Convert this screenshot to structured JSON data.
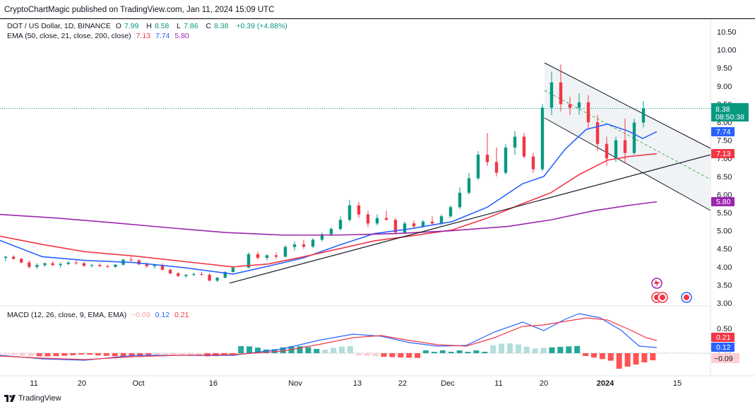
{
  "header": {
    "published": "CryptoChartMagic published on TradingView.com, Jan 11, 2024 15:09 UTC"
  },
  "legend": {
    "symbol": "DOT / US Dollar, 1D, BINANCE",
    "o_label": "O",
    "o": "7.99",
    "h_label": "H",
    "h": "8.58",
    "l_label": "L",
    "l": "7.86",
    "c_label": "C",
    "c": "8.38",
    "change": "+0.39 (+4.88%)",
    "ema_label": "EMA (50, close, 21, close, 200, close)",
    "ema50": "7.13",
    "ema21": "7.74",
    "ema200": "5.80"
  },
  "macd_legend": {
    "label": "MACD (12, 26, close, 9, EMA, EMA)",
    "hist": "−0.09",
    "macd": "0.12",
    "signal": "0.21"
  },
  "price_axis": [
    "10.50",
    "10.00",
    "9.50",
    "9.00",
    "8.50",
    "8.00",
    "7.50",
    "7.00",
    "6.50",
    "6.00",
    "5.50",
    "5.00",
    "4.50",
    "4.00",
    "3.50",
    "3.00"
  ],
  "macd_axis": [
    "0.50",
    "0.00"
  ],
  "badges": {
    "last_price": "8.38",
    "countdown": "08:50:38",
    "ema21": "7.74",
    "ema50": "7.13",
    "ema200": "5.80",
    "macd_signal": "0.21",
    "macd_line": "0.12",
    "macd_hist": "−0.09"
  },
  "x_axis": [
    "11",
    "20",
    "Oct",
    "16",
    "Nov",
    "13",
    "22",
    "Dec",
    "11",
    "20",
    "2024",
    "15"
  ],
  "footer": {
    "brand": "TradingView"
  },
  "colors": {
    "up": "#089981",
    "down": "#f23645",
    "ema21": "#2962ff",
    "ema50": "#f23645",
    "ema200": "#9c27b0",
    "channel_fill": "#f0f3f6"
  },
  "chart_data": {
    "type": "candlestick",
    "ylim": [
      3.0,
      10.5
    ],
    "candles_approx": [
      [
        4.25,
        4.3,
        4.15,
        4.28
      ],
      [
        4.28,
        4.32,
        4.2,
        4.22
      ],
      [
        4.22,
        4.25,
        4.1,
        4.12
      ],
      [
        4.12,
        4.18,
        3.95,
        4.0
      ],
      [
        4.0,
        4.1,
        3.95,
        4.05
      ],
      [
        4.05,
        4.12,
        4.0,
        4.1
      ],
      [
        4.1,
        4.15,
        4.02,
        4.05
      ],
      [
        4.05,
        4.12,
        3.98,
        4.08
      ],
      [
        4.08,
        4.15,
        4.05,
        4.12
      ],
      [
        4.12,
        4.18,
        4.06,
        4.1
      ],
      [
        4.1,
        4.14,
        4.0,
        4.03
      ],
      [
        4.03,
        4.08,
        3.98,
        4.05
      ],
      [
        4.05,
        4.1,
        4.0,
        4.02
      ],
      [
        4.02,
        4.06,
        3.97,
        4.0
      ],
      [
        4.0,
        4.08,
        3.98,
        4.06
      ],
      [
        4.06,
        4.22,
        4.04,
        4.2
      ],
      [
        4.2,
        4.28,
        4.15,
        4.18
      ],
      [
        4.18,
        4.22,
        4.05,
        4.07
      ],
      [
        4.07,
        4.12,
        3.98,
        4.02
      ],
      [
        4.02,
        4.08,
        3.95,
        4.05
      ],
      [
        4.05,
        4.1,
        3.9,
        3.92
      ],
      [
        3.92,
        3.96,
        3.8,
        3.82
      ],
      [
        3.82,
        3.86,
        3.72,
        3.75
      ],
      [
        3.75,
        3.8,
        3.7,
        3.78
      ],
      [
        3.78,
        3.84,
        3.74,
        3.8
      ],
      [
        3.8,
        3.86,
        3.76,
        3.78
      ],
      [
        3.78,
        3.82,
        3.6,
        3.62
      ],
      [
        3.62,
        3.72,
        3.58,
        3.7
      ],
      [
        3.7,
        3.88,
        3.68,
        3.86
      ],
      [
        3.86,
        4.0,
        3.84,
        3.98
      ],
      [
        3.98,
        4.4,
        3.96,
        4.35
      ],
      [
        4.35,
        4.42,
        4.2,
        4.25
      ],
      [
        4.25,
        4.35,
        4.18,
        4.32
      ],
      [
        4.32,
        4.4,
        4.22,
        4.28
      ],
      [
        4.28,
        4.6,
        4.26,
        4.55
      ],
      [
        4.55,
        4.7,
        4.45,
        4.62
      ],
      [
        4.62,
        4.75,
        4.5,
        4.56
      ],
      [
        4.56,
        4.8,
        4.52,
        4.75
      ],
      [
        4.75,
        4.95,
        4.7,
        4.9
      ],
      [
        4.9,
        5.1,
        4.85,
        5.05
      ],
      [
        5.05,
        5.4,
        5.0,
        5.3
      ],
      [
        5.3,
        5.85,
        5.25,
        5.7
      ],
      [
        5.7,
        5.8,
        5.35,
        5.45
      ],
      [
        5.45,
        5.55,
        5.1,
        5.2
      ],
      [
        5.2,
        5.45,
        5.15,
        5.35
      ],
      [
        5.35,
        5.55,
        5.28,
        5.3
      ],
      [
        5.3,
        5.35,
        4.9,
        4.95
      ],
      [
        4.95,
        5.25,
        4.92,
        5.2
      ],
      [
        5.2,
        5.28,
        5.05,
        5.12
      ],
      [
        5.12,
        5.3,
        5.08,
        5.25
      ],
      [
        5.25,
        5.4,
        5.15,
        5.2
      ],
      [
        5.2,
        5.45,
        5.15,
        5.4
      ],
      [
        5.4,
        5.7,
        5.35,
        5.65
      ],
      [
        5.65,
        6.2,
        5.6,
        6.05
      ],
      [
        6.05,
        6.6,
        6.0,
        6.45
      ],
      [
        6.45,
        7.2,
        6.4,
        7.1
      ],
      [
        7.1,
        7.7,
        6.8,
        6.9
      ],
      [
        6.9,
        7.3,
        6.5,
        6.6
      ],
      [
        6.6,
        7.4,
        6.55,
        7.3
      ],
      [
        7.3,
        7.75,
        7.1,
        7.6
      ],
      [
        7.6,
        7.7,
        7.0,
        7.05
      ],
      [
        7.05,
        7.15,
        6.6,
        6.7
      ],
      [
        6.7,
        8.5,
        6.65,
        8.4
      ],
      [
        8.4,
        9.4,
        8.2,
        9.1
      ],
      [
        9.1,
        9.6,
        8.3,
        8.5
      ],
      [
        8.5,
        8.7,
        8.2,
        8.4
      ],
      [
        8.4,
        8.8,
        8.2,
        8.55
      ],
      [
        8.55,
        8.75,
        7.8,
        8.0
      ],
      [
        8.0,
        8.2,
        7.2,
        7.4
      ],
      [
        7.4,
        7.6,
        6.8,
        7.0
      ],
      [
        7.0,
        7.6,
        6.9,
        7.5
      ],
      [
        7.5,
        8.1,
        6.9,
        7.15
      ],
      [
        7.15,
        8.1,
        7.1,
        7.99
      ],
      [
        7.99,
        8.58,
        7.86,
        8.38
      ]
    ]
  }
}
